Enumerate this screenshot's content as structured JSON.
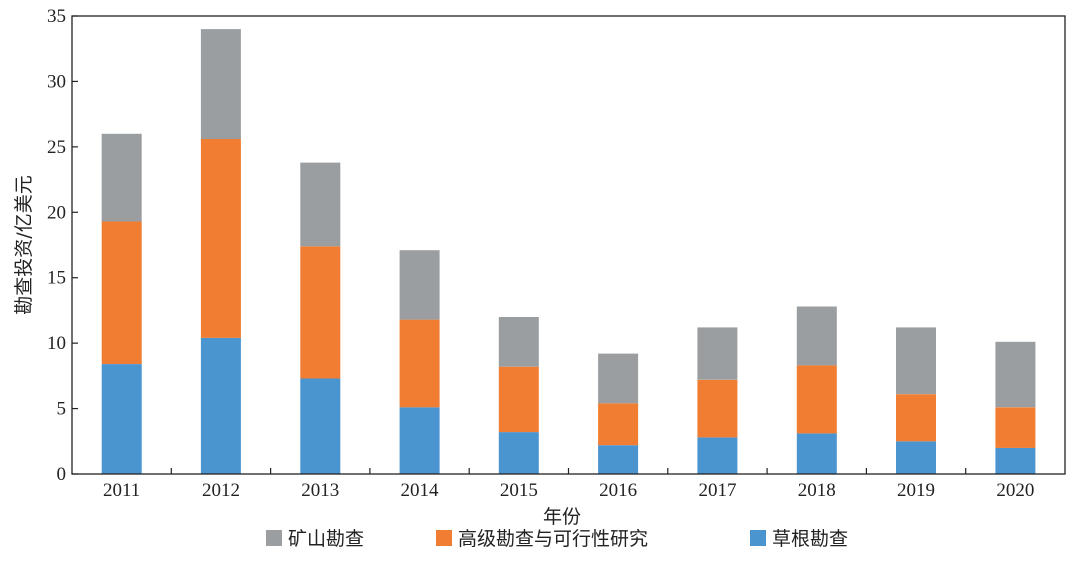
{
  "chart_data": {
    "type": "bar",
    "stacked": true,
    "title": "",
    "xlabel": "年份",
    "ylabel": "勘查投资/亿美元",
    "categories": [
      "2011",
      "2012",
      "2013",
      "2014",
      "2015",
      "2016",
      "2017",
      "2018",
      "2019",
      "2020"
    ],
    "ylim": [
      0,
      35
    ],
    "yticks": [
      "0",
      "5",
      "10",
      "15",
      "20",
      "25",
      "30",
      "35"
    ],
    "grid": false,
    "legend_position": "bottom",
    "series": [
      {
        "name": "草根勘查",
        "color": "#4a94d0",
        "values": [
          8.4,
          10.4,
          7.3,
          5.1,
          3.2,
          2.2,
          2.8,
          3.1,
          2.5,
          2.0
        ]
      },
      {
        "name": "高级勘查与可行性研究",
        "color": "#f07d32",
        "values": [
          10.9,
          15.2,
          10.1,
          6.7,
          5.0,
          3.2,
          4.4,
          5.2,
          3.6,
          3.1
        ]
      },
      {
        "name": "矿山勘查",
        "color": "#9b9ea1",
        "values": [
          6.7,
          8.4,
          6.4,
          5.3,
          3.8,
          3.8,
          4.0,
          4.5,
          5.1,
          5.0
        ]
      }
    ],
    "legend_order": [
      2,
      1,
      0
    ]
  }
}
